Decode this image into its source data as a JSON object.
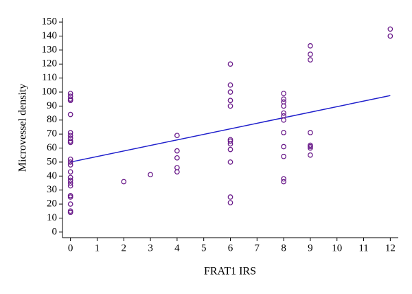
{
  "chart_data": {
    "type": "scatter",
    "x_label": "FRAT1 IRS",
    "y_label": "Microvessel density",
    "x": [
      0,
      0,
      0,
      0,
      0,
      0,
      0,
      0,
      0,
      0,
      0,
      0,
      0,
      0,
      0,
      0,
      0,
      0,
      0,
      0,
      0,
      0,
      0,
      2,
      3,
      4,
      4,
      4,
      4,
      4,
      6,
      6,
      6,
      6,
      6,
      6,
      6,
      6,
      6,
      6,
      6,
      6,
      8,
      8,
      8,
      8,
      8,
      8,
      8,
      8,
      8,
      8,
      8,
      8,
      9,
      9,
      9,
      9,
      9,
      9,
      9,
      9,
      12,
      12
    ],
    "values": [
      99,
      97,
      95,
      94,
      84,
      71,
      69,
      67,
      65,
      64,
      52,
      50,
      48,
      43,
      39,
      37,
      35,
      33,
      26,
      25,
      20,
      15,
      14,
      36,
      41,
      69,
      58,
      53,
      46,
      43,
      120,
      105,
      100,
      94,
      90,
      66,
      65,
      63,
      59,
      50,
      25,
      21,
      99,
      95,
      93,
      90,
      85,
      83,
      80,
      71,
      61,
      54,
      38,
      36,
      133,
      127,
      123,
      71,
      62,
      61,
      60,
      55,
      145,
      140
    ],
    "color": "#6a1b8a",
    "fit_line": {
      "x": [
        0,
        12
      ],
      "values": [
        50,
        97.5
      ],
      "color": "#1f1fcc"
    },
    "xlim": [
      -0.3,
      12.3
    ],
    "ylim": [
      -4,
      153
    ],
    "xticks": [
      0,
      1,
      2,
      3,
      4,
      5,
      6,
      7,
      8,
      9,
      10,
      11,
      12
    ],
    "yticks": [
      0,
      10,
      20,
      30,
      40,
      50,
      60,
      70,
      80,
      90,
      100,
      110,
      120,
      130,
      140,
      150
    ]
  }
}
